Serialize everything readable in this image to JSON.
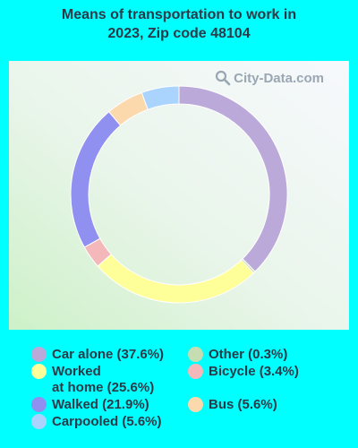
{
  "title": "Means of transportation to work in\n2023, Zip code 48104",
  "watermark": "City-Data.com",
  "chart_data": {
    "type": "pie",
    "donut": true,
    "legend_position": "bottom",
    "slices": [
      {
        "label": "Car alone (37.6%)",
        "value": 37.6,
        "color": "#bba9da"
      },
      {
        "label": "Other (0.3%)",
        "value": 0.3,
        "color": "#c6ddb2"
      },
      {
        "label": "Worked\nat home (25.6%)",
        "value": 25.6,
        "color": "#ffff99"
      },
      {
        "label": "Bicycle (3.4%)",
        "value": 3.4,
        "color": "#f4b8ba"
      },
      {
        "label": "Walked (21.9%)",
        "value": 21.9,
        "color": "#9090f0"
      },
      {
        "label": "Bus (5.6%)",
        "value": 5.6,
        "color": "#fcd9ac"
      },
      {
        "label": "Carpooled (5.6%)",
        "value": 5.6,
        "color": "#aad4fe"
      }
    ]
  }
}
